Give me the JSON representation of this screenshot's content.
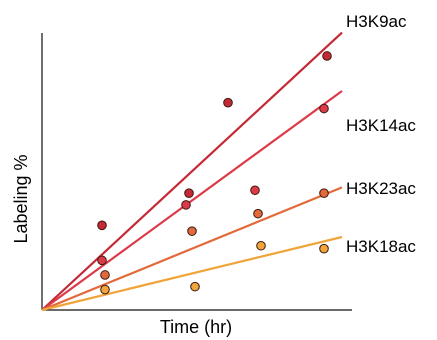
{
  "chart_data": {
    "type": "scatter",
    "xlabel": "Time (hr)",
    "ylabel": "Labeling %",
    "grid": false,
    "legend": "labels at line ends (right)",
    "xlim": [
      0,
      100
    ],
    "ylim": [
      0,
      100
    ],
    "point_x": [
      20,
      48,
      75,
      95
    ],
    "series": [
      {
        "name": "H3K9ac",
        "color": "#c42a36",
        "slope": 0.95,
        "points": [
          [
            20,
            29
          ],
          [
            49,
            40
          ],
          [
            62,
            71
          ],
          [
            95,
            87
          ]
        ]
      },
      {
        "name": "H3K14ac",
        "color": "#dc3a48",
        "slope": 0.75,
        "points": [
          [
            20,
            17
          ],
          [
            48,
            36
          ],
          [
            71,
            41
          ],
          [
            94,
            69
          ]
        ]
      },
      {
        "name": "H3K23ac",
        "color": "#e26a3a",
        "slope": 0.42,
        "points": [
          [
            21,
            12
          ],
          [
            50,
            27
          ],
          [
            72,
            33
          ],
          [
            94,
            40
          ]
        ]
      },
      {
        "name": "H3K18ac",
        "color": "#f0a43a",
        "slope": 0.25,
        "points": [
          [
            21,
            7
          ],
          [
            51,
            8
          ],
          [
            73,
            22
          ],
          [
            94,
            21
          ]
        ]
      }
    ]
  }
}
